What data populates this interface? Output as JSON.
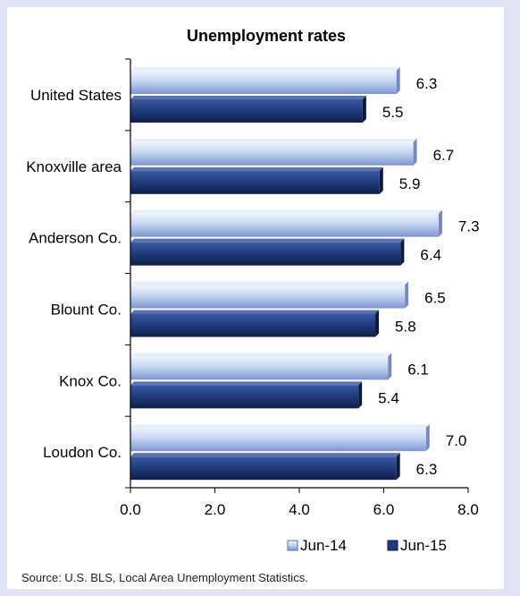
{
  "chart_data": {
    "type": "bar",
    "orientation": "horizontal",
    "title": "Unemployment rates",
    "categories": [
      "United States",
      "Knoxville area",
      "Anderson Co.",
      "Blount Co.",
      "Knox Co.",
      "Loudon Co."
    ],
    "series": [
      {
        "name": "Jun-14",
        "values": [
          6.3,
          6.7,
          7.3,
          6.5,
          6.1,
          7.0
        ],
        "labels": [
          "6.3",
          "6.7",
          "7.3",
          "6.5",
          "6.1",
          "7.0"
        ],
        "color": "#b9cdf0"
      },
      {
        "name": "Jun-15",
        "values": [
          5.5,
          5.9,
          6.4,
          5.8,
          5.4,
          6.3
        ],
        "labels": [
          "5.5",
          "5.9",
          "6.4",
          "5.8",
          "5.4",
          "6.3"
        ],
        "color": "#1f3a7a"
      }
    ],
    "xlim": [
      0,
      8
    ],
    "xticks": [
      "0.0",
      "2.0",
      "4.0",
      "6.0",
      "8.0"
    ],
    "xlabel": "",
    "ylabel": "",
    "grid": false,
    "legend_position": "bottom"
  },
  "footer": {
    "source": "Source: U.S. BLS, Local Area Unemployment Statistics."
  }
}
